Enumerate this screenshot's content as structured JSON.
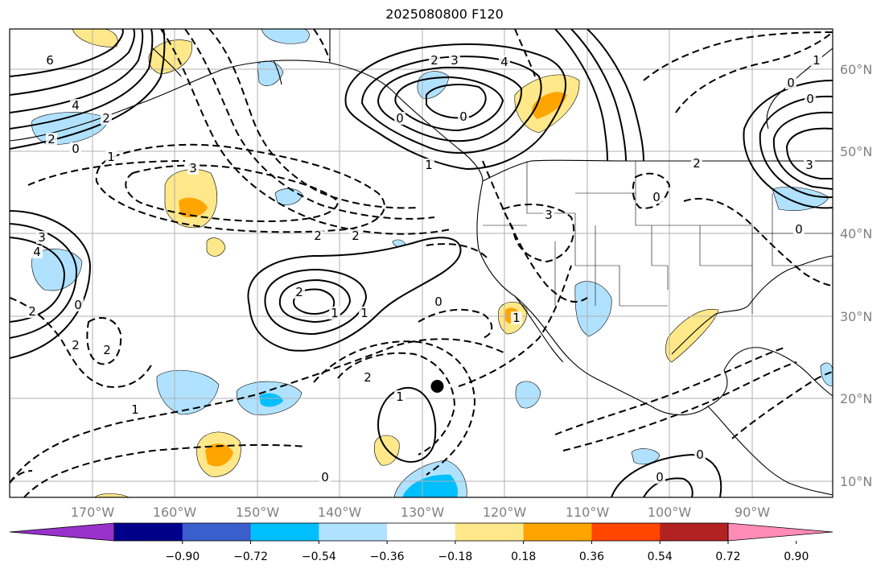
{
  "title": "2025080800 F120",
  "lat_labels": [
    "60°N",
    "50°N",
    "40°N",
    "30°N",
    "20°N",
    "10°N"
  ],
  "lon_labels": [
    "170°W",
    "160°W",
    "150°W",
    "140°W",
    "130°W",
    "120°W",
    "110°W",
    "100°W",
    "90°W"
  ],
  "colorbar": {
    "colors": [
      "#9932cc",
      "#00008b",
      "#3a5fcd",
      "#00bfff",
      "#b0e2ff",
      "#ffffff",
      "#ffe889",
      "#ffa500",
      "#ff4500",
      "#b22222",
      "#ff8cb4"
    ],
    "tick_labels": [
      "−0.90",
      "−0.72",
      "−0.54",
      "−0.36",
      "−0.18",
      "0.18",
      "0.36",
      "0.54",
      "0.72",
      "0.90"
    ]
  },
  "contour_labels": [
    "6",
    "4",
    "2",
    "0",
    "2",
    "1",
    "3",
    "2",
    "2",
    "3",
    "4",
    "0",
    "1",
    "0",
    "2",
    "3",
    "1",
    "0",
    "4",
    "3",
    "2",
    "0",
    "2",
    "2",
    "1",
    "1",
    "0",
    "2",
    "3",
    "2",
    "0",
    "0",
    "0",
    "1",
    "0",
    "1",
    "0",
    "0",
    "2",
    "1"
  ],
  "marker": {
    "lon": -128.7,
    "lat": 21.5
  }
}
